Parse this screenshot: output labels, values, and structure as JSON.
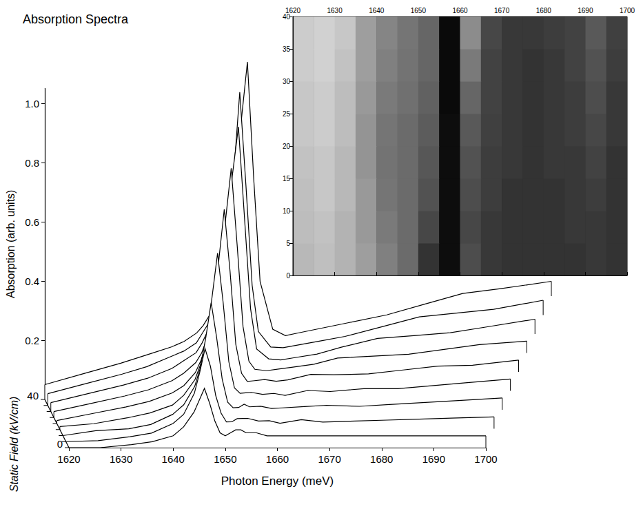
{
  "chart_data": [
    {
      "type": "waterfall",
      "title": "Absorption Spectra",
      "x_label": "Photon Energy (meV)",
      "y_label": "Absorption (arb. units)",
      "z_label": "Static Field (kV/cm)",
      "xlim": [
        1620,
        1700
      ],
      "xticks": [
        1620,
        1630,
        1640,
        1650,
        1660,
        1670,
        1680,
        1690,
        1700
      ],
      "ylim": [
        0,
        1.05
      ],
      "yticks": [
        0.2,
        0.4,
        0.6,
        0.8,
        {
          "value": 1,
          "label": "1.0"
        }
      ],
      "zlim": [
        0,
        40
      ],
      "zticks": [
        0,
        40
      ],
      "x": [
        1620,
        1626,
        1632,
        1636,
        1640,
        1642,
        1644,
        1645,
        1646,
        1647,
        1648,
        1649,
        1650,
        1651,
        1652,
        1653,
        1654,
        1656,
        1658,
        1660,
        1664,
        1668,
        1674,
        1680,
        1686,
        1692,
        1700
      ],
      "curves": [
        {
          "field": 0,
          "values": [
            0.0,
            0.0,
            0.01,
            0.02,
            0.04,
            0.07,
            0.12,
            0.16,
            0.2,
            0.15,
            0.09,
            0.05,
            0.04,
            0.05,
            0.06,
            0.06,
            0.05,
            0.05,
            0.04,
            0.04,
            0.04,
            0.04,
            0.04,
            0.04,
            0.04,
            0.04,
            0.04
          ]
        },
        {
          "field": 5,
          "values": [
            0.0,
            0.0,
            0.01,
            0.02,
            0.05,
            0.08,
            0.15,
            0.22,
            0.3,
            0.24,
            0.14,
            0.08,
            0.05,
            0.05,
            0.06,
            0.06,
            0.06,
            0.05,
            0.05,
            0.04,
            0.05,
            0.04,
            0.04,
            0.04,
            0.04,
            0.04,
            0.04
          ]
        },
        {
          "field": 10,
          "values": [
            0.0,
            0.01,
            0.01,
            0.02,
            0.05,
            0.08,
            0.14,
            0.2,
            0.3,
            0.42,
            0.3,
            0.16,
            0.08,
            0.06,
            0.06,
            0.07,
            0.06,
            0.06,
            0.05,
            0.05,
            0.05,
            0.05,
            0.04,
            0.04,
            0.04,
            0.04,
            0.04
          ]
        },
        {
          "field": 15,
          "values": [
            0.01,
            0.01,
            0.02,
            0.03,
            0.05,
            0.08,
            0.13,
            0.18,
            0.26,
            0.4,
            0.55,
            0.38,
            0.18,
            0.09,
            0.07,
            0.07,
            0.07,
            0.06,
            0.06,
            0.05,
            0.06,
            0.05,
            0.05,
            0.04,
            0.04,
            0.04,
            0.04
          ]
        },
        {
          "field": 20,
          "values": [
            0.01,
            0.02,
            0.03,
            0.04,
            0.06,
            0.08,
            0.12,
            0.16,
            0.22,
            0.32,
            0.48,
            0.66,
            0.45,
            0.2,
            0.1,
            0.07,
            0.07,
            0.07,
            0.06,
            0.06,
            0.07,
            0.06,
            0.05,
            0.05,
            0.05,
            0.04,
            0.04
          ]
        },
        {
          "field": 25,
          "values": [
            0.02,
            0.03,
            0.04,
            0.05,
            0.07,
            0.09,
            0.12,
            0.15,
            0.2,
            0.28,
            0.4,
            0.58,
            0.76,
            0.5,
            0.22,
            0.1,
            0.07,
            0.06,
            0.06,
            0.06,
            0.06,
            0.07,
            0.06,
            0.05,
            0.05,
            0.05,
            0.04
          ]
        },
        {
          "field": 30,
          "values": [
            0.03,
            0.04,
            0.05,
            0.06,
            0.08,
            0.1,
            0.12,
            0.15,
            0.19,
            0.25,
            0.35,
            0.5,
            0.7,
            0.86,
            0.55,
            0.24,
            0.1,
            0.06,
            0.05,
            0.05,
            0.05,
            0.06,
            0.07,
            0.06,
            0.05,
            0.05,
            0.05
          ]
        },
        {
          "field": 35,
          "values": [
            0.04,
            0.05,
            0.06,
            0.07,
            0.09,
            0.1,
            0.12,
            0.15,
            0.18,
            0.23,
            0.32,
            0.45,
            0.66,
            0.94,
            0.62,
            0.28,
            0.12,
            0.06,
            0.05,
            0.05,
            0.05,
            0.05,
            0.06,
            0.07,
            0.06,
            0.05,
            0.05
          ]
        },
        {
          "field": 40,
          "values": [
            0.05,
            0.06,
            0.07,
            0.08,
            0.09,
            0.1,
            0.12,
            0.14,
            0.17,
            0.21,
            0.28,
            0.38,
            0.55,
            0.8,
            1.0,
            0.6,
            0.25,
            0.08,
            0.05,
            0.05,
            0.05,
            0.05,
            0.05,
            0.06,
            0.07,
            0.06,
            0.05
          ]
        }
      ]
    },
    {
      "type": "heatmap",
      "xlim": [
        1620,
        1700
      ],
      "xticks": [
        1620,
        1630,
        1640,
        1650,
        1660,
        1670,
        1680,
        1690,
        1700
      ],
      "ylim": [
        0,
        40
      ],
      "yticks": [
        0,
        5,
        10,
        15,
        20,
        25,
        30,
        35,
        40
      ],
      "x_bins": [
        1620,
        1625,
        1630,
        1635,
        1640,
        1645,
        1650,
        1655,
        1660,
        1665,
        1670,
        1675,
        1680,
        1685,
        1690,
        1695,
        1700
      ],
      "y_bins": [
        0,
        5,
        10,
        15,
        20,
        25,
        30,
        35,
        40
      ],
      "cell_range": [
        0,
        1
      ],
      "cells": [
        [
          0.72,
          0.75,
          0.7,
          0.62,
          0.5,
          0.42,
          0.2,
          0.05,
          0.3,
          0.22,
          0.2,
          0.2,
          0.2,
          0.2,
          0.22,
          0.2
        ],
        [
          0.74,
          0.76,
          0.7,
          0.6,
          0.48,
          0.42,
          0.28,
          0.05,
          0.28,
          0.22,
          0.2,
          0.2,
          0.2,
          0.22,
          0.22,
          0.2
        ],
        [
          0.75,
          0.78,
          0.72,
          0.6,
          0.46,
          0.42,
          0.32,
          0.05,
          0.3,
          0.24,
          0.2,
          0.2,
          0.2,
          0.22,
          0.24,
          0.2
        ],
        [
          0.76,
          0.78,
          0.72,
          0.58,
          0.45,
          0.42,
          0.34,
          0.05,
          0.32,
          0.24,
          0.22,
          0.2,
          0.22,
          0.22,
          0.26,
          0.2
        ],
        [
          0.78,
          0.8,
          0.74,
          0.58,
          0.46,
          0.42,
          0.36,
          0.05,
          0.35,
          0.25,
          0.22,
          0.2,
          0.22,
          0.24,
          0.28,
          0.22
        ],
        [
          0.78,
          0.8,
          0.74,
          0.6,
          0.48,
          0.44,
          0.38,
          0.04,
          0.4,
          0.26,
          0.22,
          0.2,
          0.22,
          0.24,
          0.3,
          0.22
        ],
        [
          0.8,
          0.82,
          0.76,
          0.62,
          0.5,
          0.45,
          0.4,
          0.04,
          0.48,
          0.26,
          0.22,
          0.2,
          0.22,
          0.26,
          0.32,
          0.24
        ],
        [
          0.8,
          0.82,
          0.78,
          0.62,
          0.52,
          0.46,
          0.4,
          0.04,
          0.55,
          0.28,
          0.22,
          0.22,
          0.24,
          0.26,
          0.35,
          0.25
        ]
      ]
    }
  ]
}
